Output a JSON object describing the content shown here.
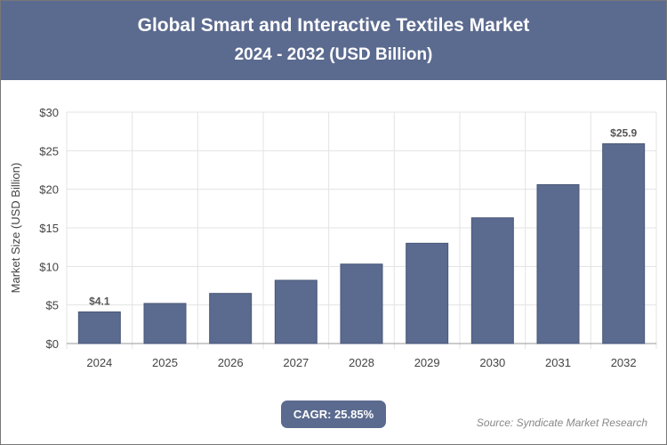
{
  "header": {
    "title": "Global Smart and Interactive Textiles Market",
    "subtitle": "2024 - 2032 (USD Billion)"
  },
  "chart_data": {
    "type": "bar",
    "title": "Global Smart and Interactive Textiles Market",
    "subtitle": "2024 - 2032 (USD Billion)",
    "ylabel": "Market Size (USD Billion)",
    "xlabel": "",
    "categories": [
      "2024",
      "2025",
      "2026",
      "2027",
      "2028",
      "2029",
      "2030",
      "2031",
      "2032"
    ],
    "values": [
      4.1,
      5.2,
      6.5,
      8.2,
      10.3,
      13.0,
      16.3,
      20.6,
      25.9
    ],
    "data_labels": {
      "2024": "$4.1",
      "2032": "$25.9"
    },
    "ylim": [
      0,
      30
    ],
    "yticks": [
      "$0",
      "$5",
      "$10",
      "$15",
      "$20",
      "$25",
      "$30"
    ],
    "grid": true,
    "bar_color": "#5b6a8f"
  },
  "footer": {
    "cagr": "CAGR: 25.85%",
    "source": "Source: Syndicate Market Research"
  }
}
